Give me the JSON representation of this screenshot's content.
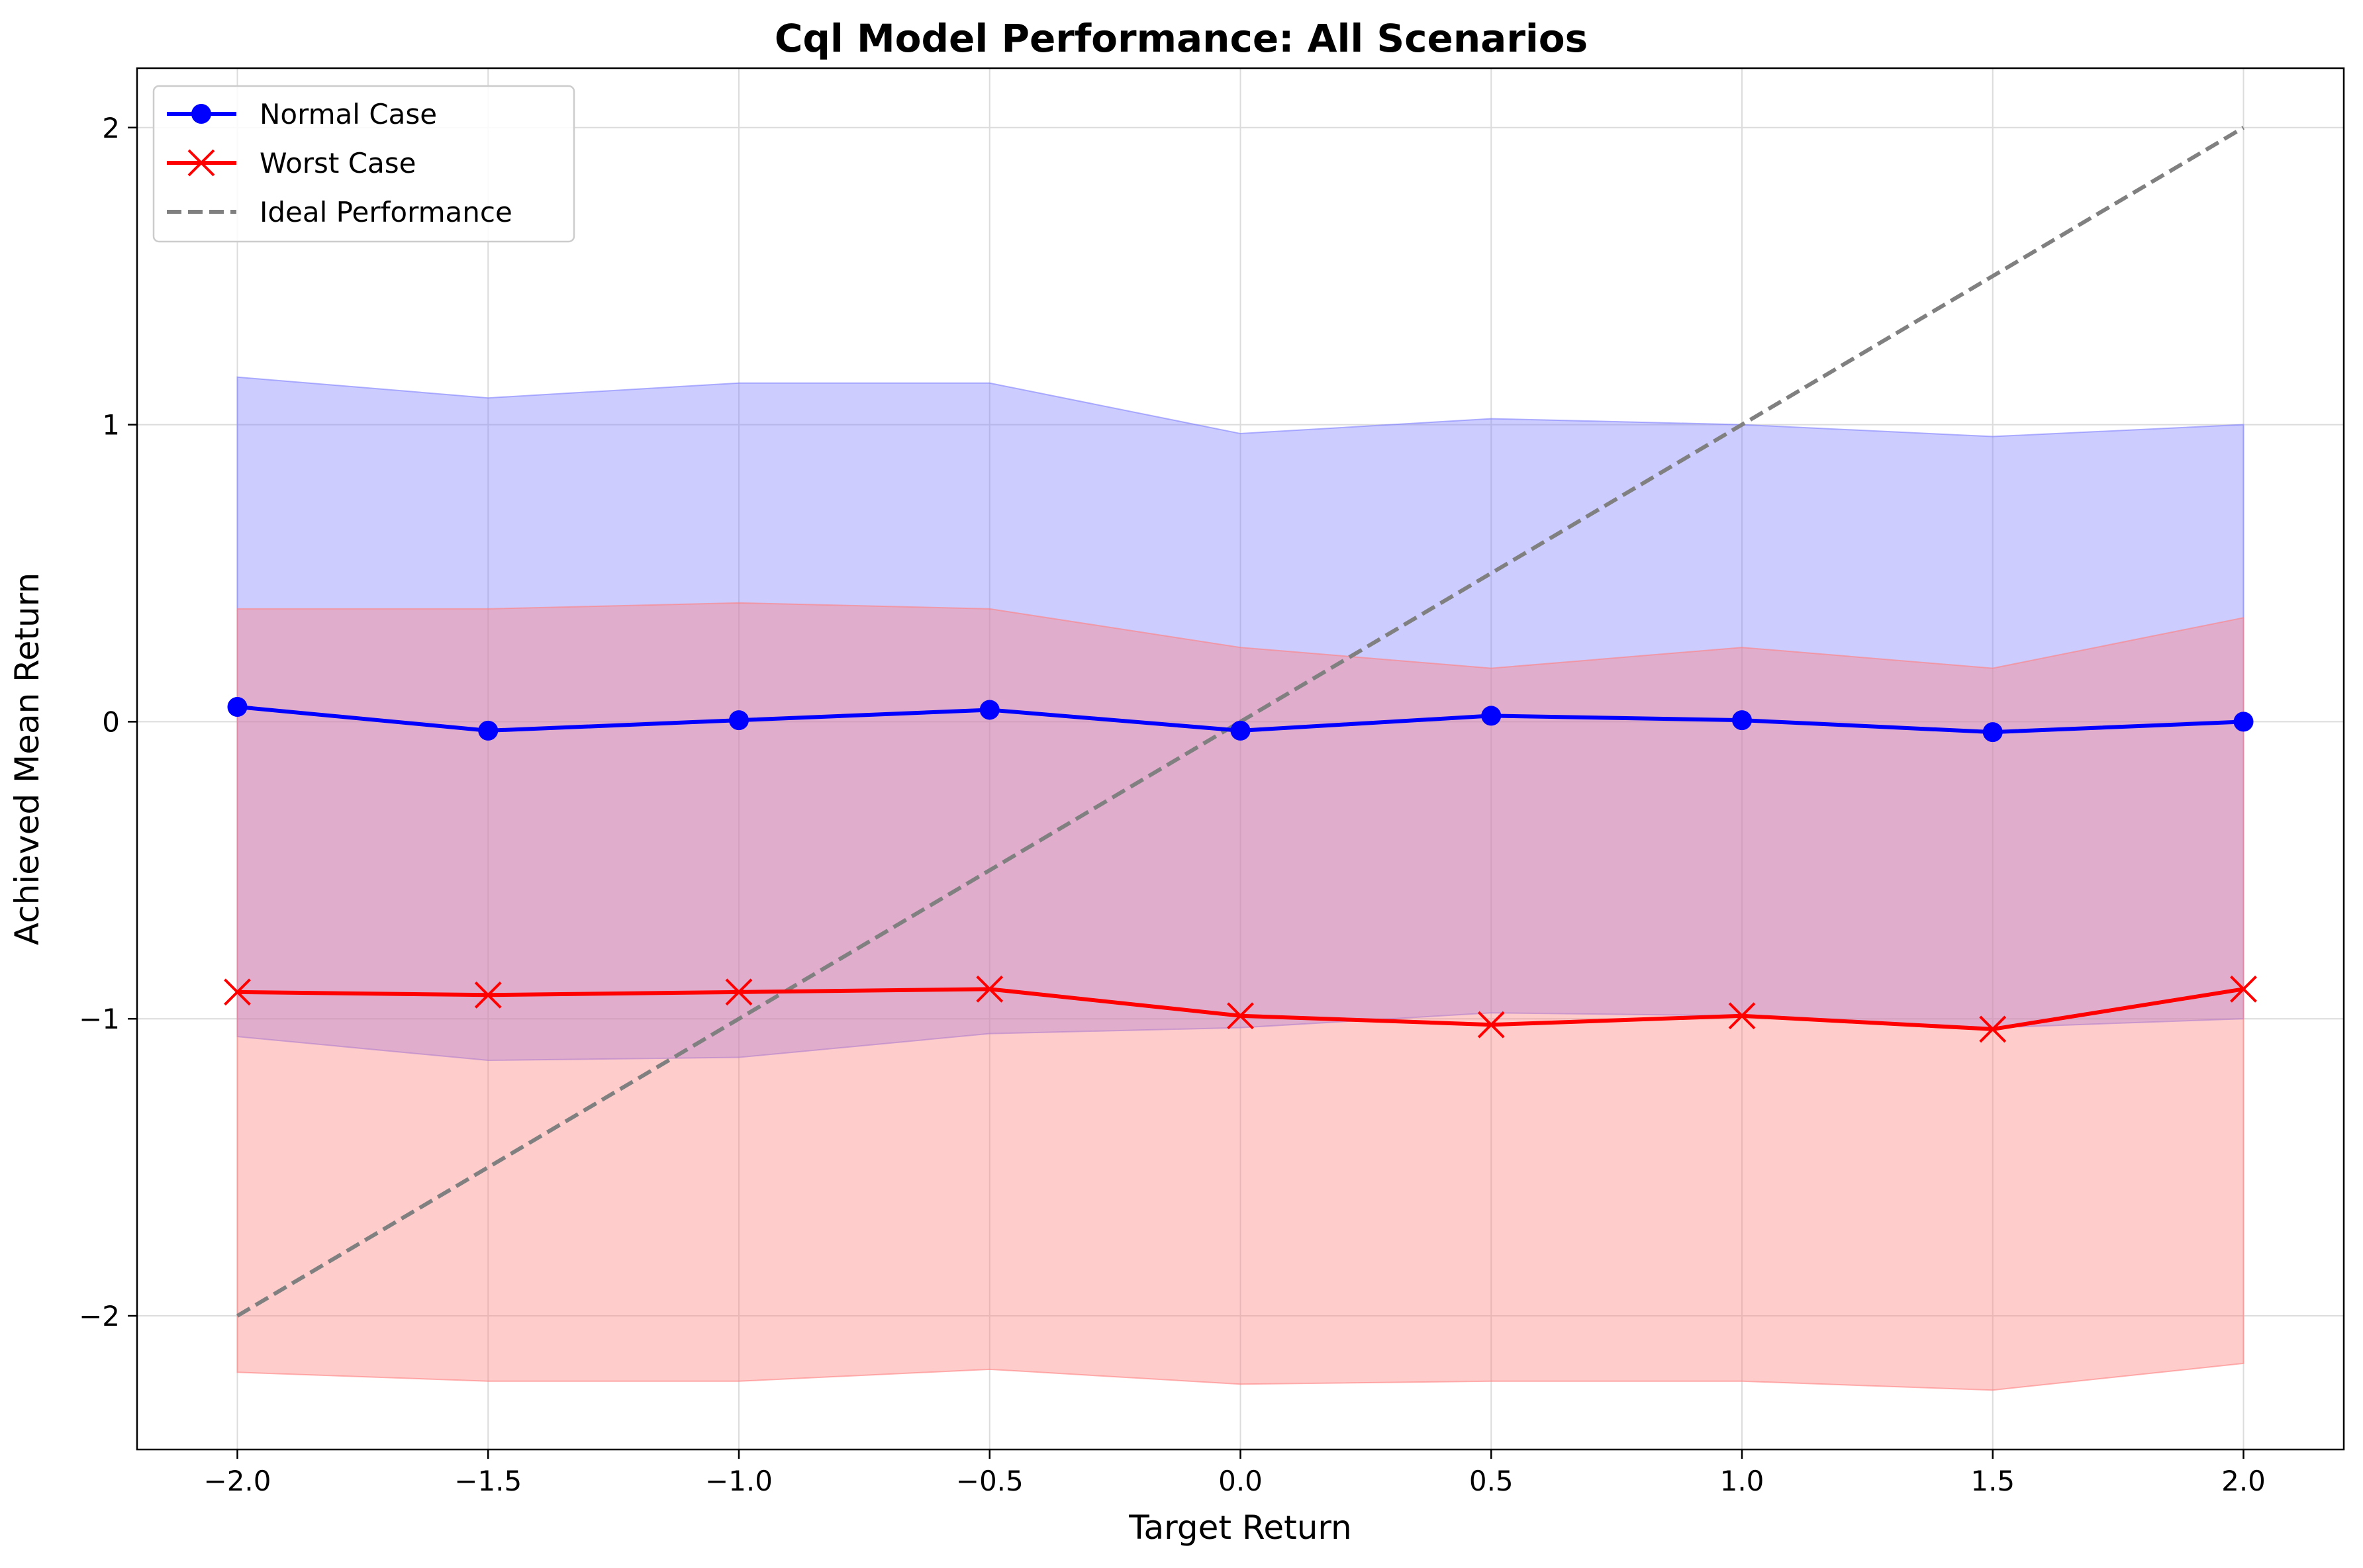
{
  "chart_data": {
    "type": "line",
    "title": "Cql Model Performance: All Scenarios",
    "xlabel": "Target Return",
    "ylabel": "Achieved Mean Return",
    "x": [
      -2.0,
      -1.5,
      -1.0,
      -0.5,
      0.0,
      0.5,
      1.0,
      1.5,
      2.0
    ],
    "xlim": [
      -2.2,
      2.2
    ],
    "ylim": [
      -2.45,
      2.2
    ],
    "xticks": [
      -2.0,
      -1.5,
      -1.0,
      -0.5,
      0.0,
      0.5,
      1.0,
      1.5,
      2.0
    ],
    "xtick_labels": [
      "−2.0",
      "−1.5",
      "−1.0",
      "−0.5",
      "0.0",
      "0.5",
      "1.0",
      "1.5",
      "2.0"
    ],
    "yticks": [
      -2,
      -1,
      0,
      1,
      2
    ],
    "ytick_labels": [
      "−2",
      "−1",
      "0",
      "1",
      "2"
    ],
    "grid": true,
    "legend_position": "top-left",
    "series": [
      {
        "name": "Normal Case",
        "color": "#0000ff",
        "marker": "circle",
        "values": [
          0.05,
          -0.03,
          0.005,
          0.04,
          -0.03,
          0.02,
          0.005,
          -0.035,
          0.0
        ],
        "band_upper": [
          1.16,
          1.09,
          1.14,
          1.14,
          0.97,
          1.02,
          1.0,
          0.96,
          1.0
        ],
        "band_lower": [
          -1.06,
          -1.14,
          -1.13,
          -1.05,
          -1.03,
          -0.98,
          -0.99,
          -1.03,
          -1.0
        ],
        "band_color": "#8080ff"
      },
      {
        "name": "Worst Case",
        "color": "#ff0000",
        "marker": "x",
        "values": [
          -0.91,
          -0.92,
          -0.91,
          -0.9,
          -0.99,
          -1.02,
          -0.99,
          -1.035,
          -0.9
        ],
        "band_upper": [
          0.38,
          0.38,
          0.4,
          0.38,
          0.25,
          0.18,
          0.25,
          0.18,
          0.35
        ],
        "band_lower": [
          -2.19,
          -2.22,
          -2.22,
          -2.18,
          -2.23,
          -2.22,
          -2.22,
          -2.25,
          -2.16
        ],
        "band_color": "#ff8080"
      }
    ],
    "reference_line": {
      "name": "Ideal Performance",
      "color": "#808080",
      "style": "dashed",
      "x": [
        -2.0,
        2.0
      ],
      "y": [
        -2.0,
        2.0
      ]
    }
  }
}
